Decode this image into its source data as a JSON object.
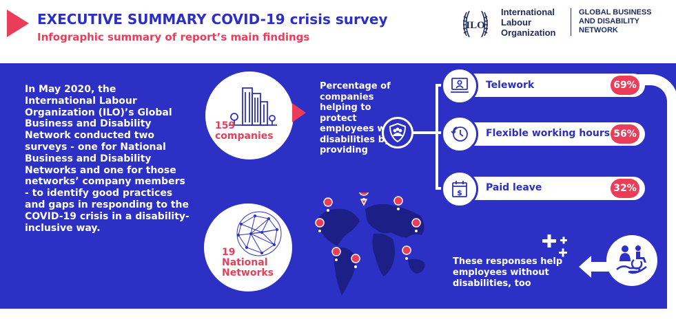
{
  "header": {
    "title": "EXECUTIVE SUMMARY COVID-19 crisis survey",
    "subtitle": "Infographic summary of report’s main findings",
    "logo": {
      "seal_text": "ILO",
      "org_lines": [
        "International",
        "Labour",
        "Organization"
      ],
      "network_lines": [
        "GLOBAL BUSINESS",
        "AND DISABILITY",
        "NETWORK"
      ]
    }
  },
  "intro": "In May 2020, the International Labour Organization (ILO)’s Global Business and Disability Network conducted two surveys - one for National Business and Disability Networks and one for those networks’ company members - to identify good practices and gaps in responding to the COVID-19 crisis in a disability-inclusive way.",
  "stats": {
    "companies_number": "159",
    "companies_label": "companies",
    "networks_number": "19",
    "networks_label_1": "National",
    "networks_label_2": "Networks"
  },
  "percentage_text": "Percentage of companies helping to protect employees with disabilities by providing",
  "measures": [
    {
      "label": "Telework",
      "percent": "69%",
      "value": 69,
      "icon": "laptop-user-icon"
    },
    {
      "label": "Flexible working hours",
      "percent": "56%",
      "value": 56,
      "icon": "clock-icon"
    },
    {
      "label": "Paid leave",
      "percent": "32%",
      "value": 32,
      "icon": "calendar-dollar-icon"
    }
  ],
  "footer_text": "These responses help employees without disabilities, too",
  "colors": {
    "primary_blue": "#2c30c4",
    "accent_red": "#ea3d5a",
    "navy": "#1e2a5a",
    "white": "#ffffff"
  }
}
